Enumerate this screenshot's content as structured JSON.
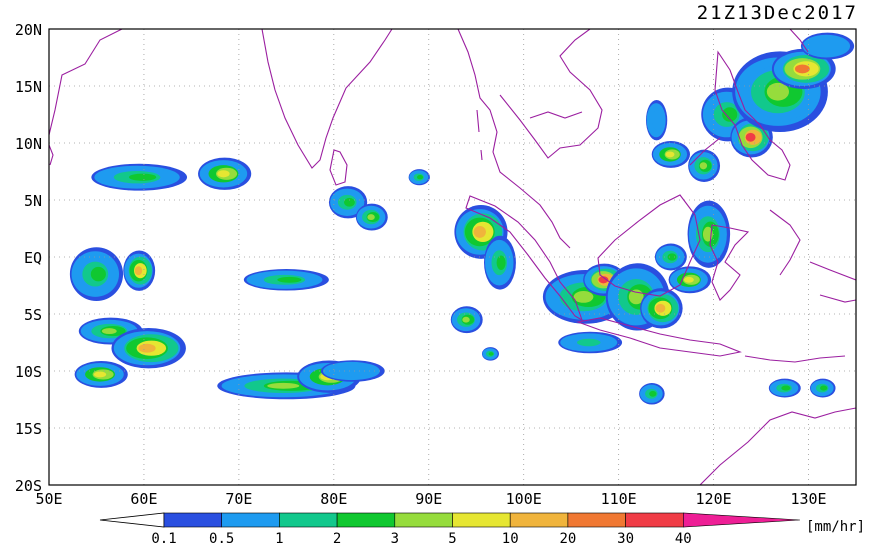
{
  "title": "21Z13Dec2017",
  "lat_labels": [
    "20N",
    "15N",
    "10N",
    "5N",
    "EQ",
    "5S",
    "10S",
    "15S",
    "20S"
  ],
  "lon_labels": [
    "50E",
    "60E",
    "70E",
    "80E",
    "90E",
    "100E",
    "110E",
    "120E",
    "130E"
  ],
  "colorbar": {
    "unit": "[mm/hr]",
    "ticks": [
      "0.1",
      "0.5",
      "1",
      "2",
      "3",
      "5",
      "10",
      "20",
      "30",
      "40"
    ],
    "colors": [
      "#2a4fe0",
      "#1e9bf0",
      "#12c88c",
      "#10c830",
      "#96dc3c",
      "#e6e632",
      "#f0b43c",
      "#f07832",
      "#f03c46",
      "#ee1f96"
    ]
  },
  "map": {
    "lon_range": [
      50,
      135
    ],
    "lat_range": [
      -20,
      20
    ],
    "coastline_color": "#9b1fa0",
    "grid": true,
    "precip_areas": [
      {
        "lon": 59.5,
        "lat": 7.0,
        "rx": 4.5,
        "ry": 1.0,
        "level": 3
      },
      {
        "lon": 68.5,
        "lat": 7.3,
        "rx": 2.5,
        "ry": 1.2,
        "level": 5
      },
      {
        "lon": 55.0,
        "lat": -1.5,
        "rx": 2.5,
        "ry": 2.0,
        "level": 3
      },
      {
        "lon": 59.5,
        "lat": -1.2,
        "rx": 1.5,
        "ry": 1.5,
        "level": 6
      },
      {
        "lon": 56.5,
        "lat": -6.5,
        "rx": 3.0,
        "ry": 1.0,
        "level": 4
      },
      {
        "lon": 60.5,
        "lat": -8.0,
        "rx": 3.5,
        "ry": 1.5,
        "level": 6
      },
      {
        "lon": 55.5,
        "lat": -10.3,
        "rx": 2.5,
        "ry": 1.0,
        "level": 5
      },
      {
        "lon": 75.0,
        "lat": -11.3,
        "rx": 6.5,
        "ry": 1.0,
        "level": 4
      },
      {
        "lon": 79.5,
        "lat": -10.5,
        "rx": 3.0,
        "ry": 1.2,
        "level": 5
      },
      {
        "lon": 82.0,
        "lat": -10.0,
        "rx": 3.0,
        "ry": 0.8,
        "level": 1
      },
      {
        "lon": 75.0,
        "lat": -2.0,
        "rx": 4.0,
        "ry": 0.8,
        "level": 3
      },
      {
        "lon": 81.5,
        "lat": 4.8,
        "rx": 1.8,
        "ry": 1.2,
        "level": 3
      },
      {
        "lon": 84.0,
        "lat": 3.5,
        "rx": 1.5,
        "ry": 1.0,
        "level": 4
      },
      {
        "lon": 95.5,
        "lat": 2.2,
        "rx": 2.5,
        "ry": 2.0,
        "level": 6
      },
      {
        "lon": 97.5,
        "lat": -0.5,
        "rx": 1.5,
        "ry": 2.0,
        "level": 3
      },
      {
        "lon": 94.0,
        "lat": -5.5,
        "rx": 1.5,
        "ry": 1.0,
        "level": 4
      },
      {
        "lon": 106.5,
        "lat": -3.5,
        "rx": 4.0,
        "ry": 2.0,
        "level": 4
      },
      {
        "lon": 108.5,
        "lat": -2.0,
        "rx": 2.0,
        "ry": 1.2,
        "level": 8
      },
      {
        "lon": 112.0,
        "lat": -3.5,
        "rx": 3.0,
        "ry": 2.5,
        "level": 4
      },
      {
        "lon": 114.5,
        "lat": -4.5,
        "rx": 2.0,
        "ry": 1.5,
        "level": 6
      },
      {
        "lon": 117.5,
        "lat": -2.0,
        "rx": 2.0,
        "ry": 1.0,
        "level": 5
      },
      {
        "lon": 119.5,
        "lat": 2.0,
        "rx": 2.0,
        "ry": 2.5,
        "level": 4
      },
      {
        "lon": 115.5,
        "lat": 0.0,
        "rx": 1.5,
        "ry": 1.0,
        "level": 3
      },
      {
        "lon": 107.0,
        "lat": -7.5,
        "rx": 3.0,
        "ry": 0.8,
        "level": 2
      },
      {
        "lon": 113.5,
        "lat": -12.0,
        "rx": 1.2,
        "ry": 0.8,
        "level": 3
      },
      {
        "lon": 121.5,
        "lat": 12.5,
        "rx": 2.5,
        "ry": 2.0,
        "level": 3
      },
      {
        "lon": 124.0,
        "lat": 10.5,
        "rx": 2.0,
        "ry": 1.5,
        "level": 8
      },
      {
        "lon": 127.0,
        "lat": 14.5,
        "rx": 4.5,
        "ry": 3.0,
        "level": 4
      },
      {
        "lon": 129.5,
        "lat": 16.5,
        "rx": 3.0,
        "ry": 1.5,
        "level": 7
      },
      {
        "lon": 132.0,
        "lat": 18.5,
        "rx": 2.5,
        "ry": 1.0,
        "level": 0
      },
      {
        "lon": 115.5,
        "lat": 9.0,
        "rx": 1.8,
        "ry": 1.0,
        "level": 5
      },
      {
        "lon": 119.0,
        "lat": 8.0,
        "rx": 1.5,
        "ry": 1.2,
        "level": 4
      },
      {
        "lon": 114.0,
        "lat": 12.0,
        "rx": 1.0,
        "ry": 1.5,
        "level": 1
      },
      {
        "lon": 127.5,
        "lat": -11.5,
        "rx": 1.5,
        "ry": 0.7,
        "level": 3
      },
      {
        "lon": 131.5,
        "lat": -11.5,
        "rx": 1.2,
        "ry": 0.7,
        "level": 3
      },
      {
        "lon": 89.0,
        "lat": 7.0,
        "rx": 1.0,
        "ry": 0.6,
        "level": 3
      },
      {
        "lon": 96.5,
        "lat": -8.5,
        "rx": 0.8,
        "ry": 0.5,
        "level": 3
      }
    ]
  }
}
